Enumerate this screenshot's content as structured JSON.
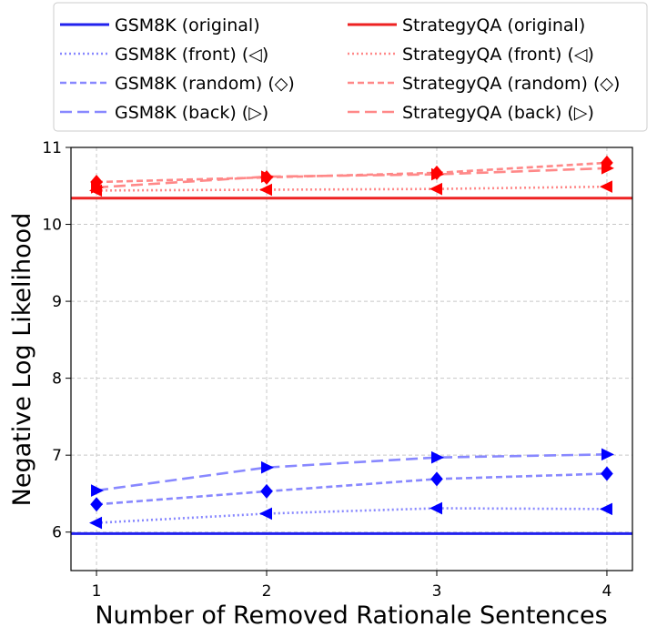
{
  "chart_data": {
    "type": "line",
    "xlabel": "Number of Removed Rationale Sentences",
    "ylabel": "Negative Log Likelihood",
    "x": [
      1,
      2,
      3,
      4
    ],
    "xticks": [
      "1",
      "2",
      "3",
      "4"
    ],
    "xlim": [
      0.85,
      4.15
    ],
    "ylim": [
      5.5,
      11
    ],
    "yticks": [
      "6",
      "7",
      "8",
      "9",
      "10",
      "11"
    ],
    "grid": true,
    "legend_position": "top",
    "series": [
      {
        "name": "GSM8K (original)",
        "color": "#2222ee",
        "style": "solid",
        "marker": "none",
        "value": 5.98
      },
      {
        "name": "StrategyQA (original)",
        "color": "#ee2222",
        "style": "solid",
        "marker": "none",
        "value": 10.34
      },
      {
        "name": "GSM8K (front) (◁)",
        "color": "#8888ff",
        "style": "dotted",
        "marker": "triangle-left",
        "point_color": "#0000ff",
        "values": [
          6.12,
          6.24,
          6.31,
          6.3
        ]
      },
      {
        "name": "GSM8K (random) (◇)",
        "color": "#8888ff",
        "style": "dashed",
        "marker": "diamond",
        "point_color": "#0000ff",
        "values": [
          6.36,
          6.53,
          6.69,
          6.76
        ]
      },
      {
        "name": "GSM8K (back) (▷)",
        "color": "#8888ff",
        "style": "longdash",
        "marker": "triangle-right",
        "point_color": "#0000ff",
        "values": [
          6.54,
          6.84,
          6.97,
          7.01
        ]
      },
      {
        "name": "StrategyQA (front) (◁)",
        "color": "#ff8888",
        "style": "dotted",
        "marker": "triangle-left",
        "point_color": "#ff0000",
        "values": [
          10.44,
          10.45,
          10.46,
          10.49
        ]
      },
      {
        "name": "StrategyQA (random) (◇)",
        "color": "#ff8888",
        "style": "dashed",
        "marker": "diamond",
        "point_color": "#ff0000",
        "values": [
          10.55,
          10.61,
          10.67,
          10.8
        ]
      },
      {
        "name": "StrategyQA (back) (▷)",
        "color": "#ff8888",
        "style": "longdash",
        "marker": "triangle-right",
        "point_color": "#ff0000",
        "values": [
          10.48,
          10.62,
          10.65,
          10.73
        ]
      }
    ],
    "legend": [
      "GSM8K (original)",
      "GSM8K (front) (◁)",
      "GSM8K (random) (◇)",
      "GSM8K (back) (▷)",
      "StrategyQA (original)",
      "StrategyQA (front) (◁)",
      "StrategyQA (random) (◇)",
      "StrategyQA (back) (▷)"
    ]
  }
}
